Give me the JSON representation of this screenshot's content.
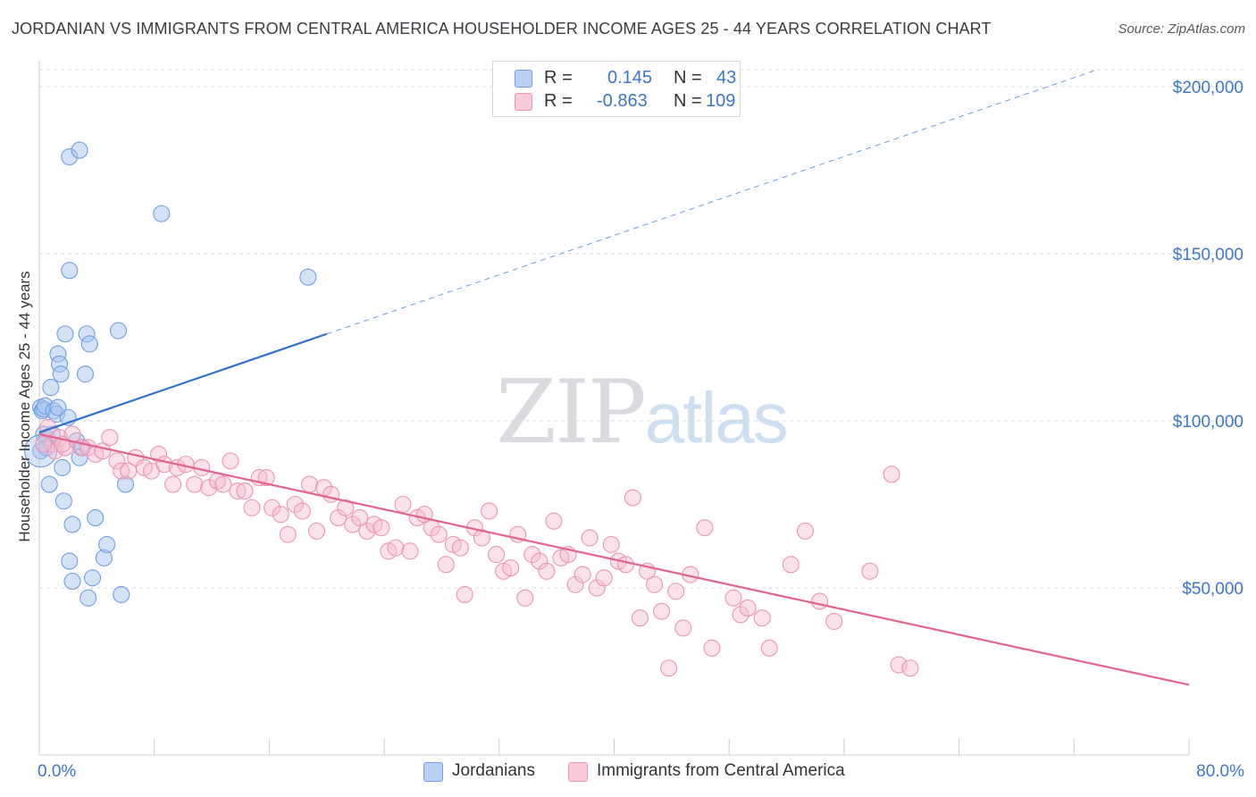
{
  "title": "JORDANIAN VS IMMIGRANTS FROM CENTRAL AMERICA HOUSEHOLDER INCOME AGES 25 - 44 YEARS CORRELATION CHART",
  "source": "Source: ZipAtlas.com",
  "watermark": {
    "zip": "ZIP",
    "atlas": "atlas"
  },
  "legend": {
    "rows": [
      {
        "r_label": "R =",
        "r_value": "0.145",
        "n_label": "N =",
        "n_value": "43"
      },
      {
        "r_label": "R =",
        "r_value": "-0.863",
        "n_label": "N =",
        "n_value": "109"
      }
    ]
  },
  "bottom_legend": [
    "Jordanians",
    "Immigrants from Central America"
  ],
  "colors": {
    "jordanians_fill": "#a8c6f0",
    "jordanians_stroke": "#6f9fe0",
    "jordanians_line": "#2f6fd0",
    "central_fill": "#f6bdd0",
    "central_stroke": "#eb94b3",
    "central_line": "#e5628f",
    "grid": "#d9d9d9",
    "tick_label": "#3d76c8"
  },
  "chart_data": {
    "type": "scatter",
    "title": "JORDANIAN VS IMMIGRANTS FROM CENTRAL AMERICA HOUSEHOLDER INCOME AGES 25 - 44 YEARS CORRELATION CHART",
    "xlabel": "",
    "ylabel": "Householder Income Ages 25 - 44 years",
    "x_tick_labels": [
      "0.0%",
      "80.0%"
    ],
    "y_tick_labels": [
      "$50,000",
      "$100,000",
      "$150,000",
      "$200,000"
    ],
    "y_ticks": [
      50000,
      100000,
      150000,
      200000
    ],
    "xlim": [
      0,
      80
    ],
    "ylim": [
      0,
      205000
    ],
    "grid": true,
    "legend_position": "bottom",
    "series": [
      {
        "name": "Jordanians",
        "stats": {
          "R": 0.145,
          "N": 43
        },
        "trend": {
          "x0": 0,
          "y0": 96500,
          "x1": 20,
          "y1": 126000,
          "dashed_to_x": 80,
          "dashed_to_y": 214500
        },
        "points": [
          [
            0.1,
            91000
          ],
          [
            0.1,
            104000
          ],
          [
            0.2,
            103000
          ],
          [
            0.3,
            103500
          ],
          [
            0.3,
            96000
          ],
          [
            0.4,
            104500
          ],
          [
            0.5,
            95000
          ],
          [
            0.5,
            92000
          ],
          [
            0.7,
            81000
          ],
          [
            0.8,
            110000
          ],
          [
            1.0,
            103000
          ],
          [
            1.2,
            102000
          ],
          [
            1.3,
            120000
          ],
          [
            1.4,
            117000
          ],
          [
            1.5,
            114000
          ],
          [
            1.6,
            86000
          ],
          [
            1.7,
            76000
          ],
          [
            1.8,
            126000
          ],
          [
            2.0,
            101000
          ],
          [
            2.1,
            58000
          ],
          [
            2.1,
            145000
          ],
          [
            2.1,
            179000
          ],
          [
            2.3,
            52000
          ],
          [
            2.3,
            69000
          ],
          [
            2.6,
            94000
          ],
          [
            2.8,
            89000
          ],
          [
            2.8,
            181000
          ],
          [
            3.0,
            92000
          ],
          [
            3.2,
            114000
          ],
          [
            3.3,
            126000
          ],
          [
            3.4,
            47000
          ],
          [
            3.5,
            123000
          ],
          [
            3.7,
            53000
          ],
          [
            3.9,
            71000
          ],
          [
            4.5,
            59000
          ],
          [
            4.7,
            63000
          ],
          [
            5.5,
            127000
          ],
          [
            5.7,
            48000
          ],
          [
            6.0,
            81000
          ],
          [
            8.5,
            162000
          ],
          [
            18.7,
            143000
          ],
          [
            1.3,
            104000
          ],
          [
            0.9,
            96000
          ]
        ]
      },
      {
        "name": "Immigrants from Central America",
        "stats": {
          "R": -0.863,
          "N": 109
        },
        "trend": {
          "x0": 0,
          "y0": 96000,
          "x1": 80,
          "y1": 21000
        },
        "points": [
          [
            0.6,
            98000
          ],
          [
            0.9,
            93000
          ],
          [
            1.1,
            91000
          ],
          [
            1.4,
            95000
          ],
          [
            1.8,
            92000
          ],
          [
            2.3,
            96000
          ],
          [
            2.9,
            92000
          ],
          [
            3.4,
            92000
          ],
          [
            3.9,
            90000
          ],
          [
            4.4,
            91000
          ],
          [
            4.9,
            95000
          ],
          [
            5.4,
            88000
          ],
          [
            5.7,
            85000
          ],
          [
            6.2,
            85000
          ],
          [
            6.7,
            89000
          ],
          [
            7.3,
            86000
          ],
          [
            7.8,
            85000
          ],
          [
            8.3,
            90000
          ],
          [
            8.7,
            87000
          ],
          [
            9.3,
            81000
          ],
          [
            9.6,
            86000
          ],
          [
            10.2,
            87000
          ],
          [
            10.8,
            81000
          ],
          [
            11.3,
            86000
          ],
          [
            11.8,
            80000
          ],
          [
            12.4,
            82000
          ],
          [
            12.8,
            81000
          ],
          [
            13.3,
            88000
          ],
          [
            13.8,
            79000
          ],
          [
            14.3,
            79000
          ],
          [
            14.8,
            74000
          ],
          [
            15.3,
            83000
          ],
          [
            15.8,
            83000
          ],
          [
            16.2,
            74000
          ],
          [
            16.8,
            72000
          ],
          [
            17.3,
            66000
          ],
          [
            17.8,
            75000
          ],
          [
            18.3,
            73000
          ],
          [
            18.8,
            81000
          ],
          [
            19.3,
            67000
          ],
          [
            19.8,
            80000
          ],
          [
            20.3,
            78000
          ],
          [
            20.8,
            71000
          ],
          [
            21.3,
            74000
          ],
          [
            21.8,
            69000
          ],
          [
            22.3,
            71000
          ],
          [
            22.8,
            67000
          ],
          [
            23.3,
            69000
          ],
          [
            23.8,
            68000
          ],
          [
            24.3,
            61000
          ],
          [
            24.8,
            62000
          ],
          [
            25.3,
            75000
          ],
          [
            25.8,
            61000
          ],
          [
            26.3,
            71000
          ],
          [
            26.8,
            72000
          ],
          [
            27.3,
            68000
          ],
          [
            27.8,
            66000
          ],
          [
            28.3,
            57000
          ],
          [
            28.8,
            63000
          ],
          [
            29.3,
            62000
          ],
          [
            29.6,
            48000
          ],
          [
            30.3,
            68000
          ],
          [
            30.8,
            65000
          ],
          [
            31.3,
            73000
          ],
          [
            31.8,
            60000
          ],
          [
            32.3,
            55000
          ],
          [
            32.8,
            56000
          ],
          [
            33.3,
            66000
          ],
          [
            33.8,
            47000
          ],
          [
            34.3,
            60000
          ],
          [
            34.8,
            58000
          ],
          [
            35.3,
            55000
          ],
          [
            35.8,
            70000
          ],
          [
            36.3,
            59000
          ],
          [
            36.8,
            60000
          ],
          [
            37.3,
            51000
          ],
          [
            37.8,
            54000
          ],
          [
            38.3,
            65000
          ],
          [
            38.8,
            50000
          ],
          [
            39.3,
            53000
          ],
          [
            39.8,
            63000
          ],
          [
            40.3,
            58000
          ],
          [
            40.8,
            57000
          ],
          [
            41.3,
            77000
          ],
          [
            41.8,
            41000
          ],
          [
            42.3,
            55000
          ],
          [
            42.8,
            51000
          ],
          [
            43.3,
            43000
          ],
          [
            43.8,
            26000
          ],
          [
            44.3,
            49000
          ],
          [
            44.8,
            38000
          ],
          [
            45.3,
            54000
          ],
          [
            46.3,
            68000
          ],
          [
            46.8,
            32000
          ],
          [
            48.3,
            47000
          ],
          [
            48.8,
            42000
          ],
          [
            49.3,
            44000
          ],
          [
            50.3,
            41000
          ],
          [
            50.8,
            32000
          ],
          [
            52.3,
            57000
          ],
          [
            53.3,
            67000
          ],
          [
            54.3,
            46000
          ],
          [
            55.3,
            40000
          ],
          [
            57.8,
            55000
          ],
          [
            59.8,
            27000
          ],
          [
            60.6,
            26000
          ],
          [
            59.3,
            84000
          ],
          [
            0.3,
            93000
          ],
          [
            1.6,
            93000
          ]
        ]
      }
    ]
  }
}
